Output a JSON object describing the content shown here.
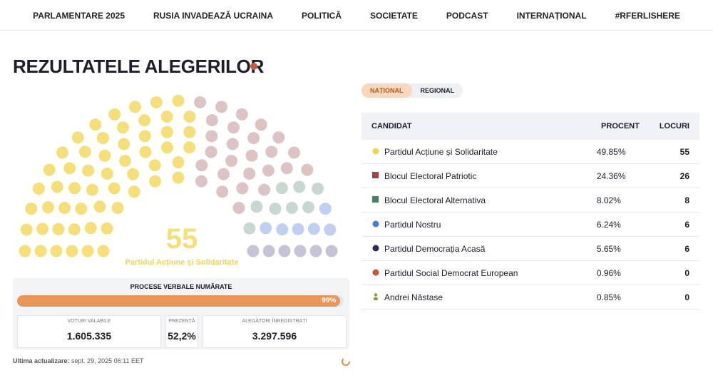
{
  "nav": [
    "PARLAMENTARE 2025",
    "RUSIA INVADEAZĂ UCRAINA",
    "POLITICĂ",
    "SOCIETATE",
    "PODCAST",
    "INTERNAȚIONAL",
    "#RFERLISHERE"
  ],
  "header": {
    "title": "REZULTATELE ALEGERILOR"
  },
  "tabs": [
    "NAȚIONAL",
    "REGIONAL"
  ],
  "hemicycle": {
    "seats": 55,
    "party": "Partidul Acțiune și Solidaritate"
  },
  "progress": {
    "title": "PROCESE VERBALE NUMĂRATE",
    "value": 99,
    "label": "99%"
  },
  "stats": [
    {
      "label": "VOTURI VALABILE",
      "value": "1.605.335"
    },
    {
      "label": "PREZENȚĂ",
      "value": "52,2%"
    },
    {
      "label": "ALEGĂTORI ÎNREGISTRAȚI",
      "value": "3.297.596"
    }
  ],
  "footer": {
    "label": "Ultima actualizare:",
    "date": "sept. 29, 2025 06:11 EET"
  },
  "table": {
    "columns": [
      "CANDIDAT",
      "PROCENT",
      "LOCURI"
    ],
    "rows": [
      {
        "name": "Partidul Acțiune și Solidaritate",
        "color": "#f0d35a",
        "seat_color": "#f4df7a",
        "marker": "circle",
        "percent": "49.85%",
        "seats": 55
      },
      {
        "name": "Blocul Electoral Patriotic",
        "color": "#a3453d",
        "seat_color": "#dcc4c5",
        "marker": "square",
        "percent": "24.36%",
        "seats": 26
      },
      {
        "name": "Blocul Electoral Alternativa",
        "color": "#4b7f67",
        "seat_color": "#c8d8d1",
        "marker": "square",
        "percent": "8.02%",
        "seats": 8
      },
      {
        "name": "Partidul Nostru",
        "color": "#4a7bd6",
        "seat_color": "#bfd0f1",
        "marker": "circle",
        "percent": "6.24%",
        "seats": 6
      },
      {
        "name": "Partidul Democrația Acasă",
        "color": "#2e2a5c",
        "seat_color": "#c7c3d7",
        "marker": "circle",
        "percent": "5.65%",
        "seats": 6
      },
      {
        "name": "Partidul Social Democrat European",
        "color": "#c4563f",
        "seat_color": "#e8c0b6",
        "marker": "circle",
        "percent": "0.96%",
        "seats": 0
      },
      {
        "name": "Andrei Năstase",
        "color": "#7aa23a",
        "seat_color": "#d4e2bd",
        "marker": "person",
        "percent": "0.85%",
        "seats": 0
      }
    ]
  }
}
